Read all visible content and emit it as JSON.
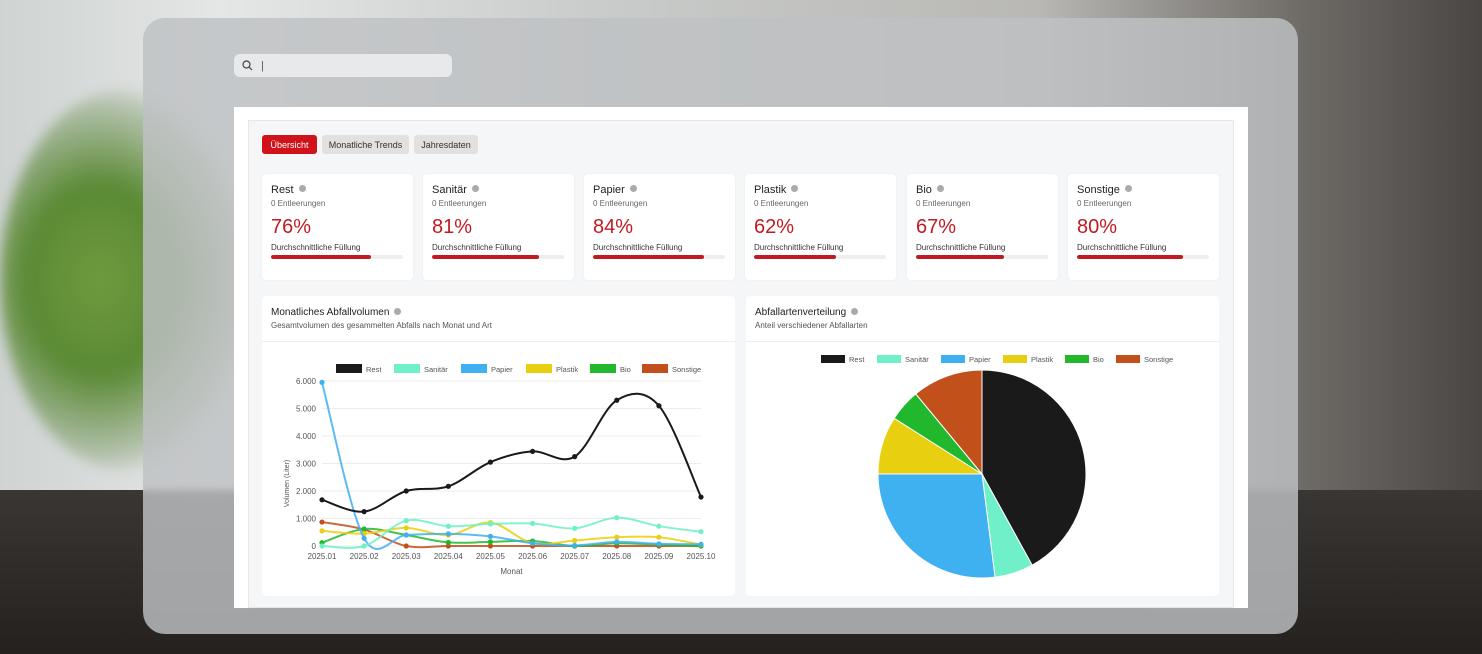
{
  "search": {
    "value": "|"
  },
  "tabs": [
    {
      "label": "Übersicht"
    },
    {
      "label": "Monatliche Trends"
    },
    {
      "label": "Jahresdaten"
    }
  ],
  "cards": [
    {
      "title": "Rest",
      "sub": "0 Entleerungen",
      "percent": "76%",
      "fill": 76,
      "label": "Durchschnittliche Füllung"
    },
    {
      "title": "Sanitär",
      "sub": "0 Entleerungen",
      "percent": "81%",
      "fill": 81,
      "label": "Durchschnittliche Füllung"
    },
    {
      "title": "Papier",
      "sub": "0 Entleerungen",
      "percent": "84%",
      "fill": 84,
      "label": "Durchschnittliche Füllung"
    },
    {
      "title": "Plastik",
      "sub": "0 Entleerungen",
      "percent": "62%",
      "fill": 62,
      "label": "Durchschnittliche Füllung"
    },
    {
      "title": "Bio",
      "sub": "0 Entleerungen",
      "percent": "67%",
      "fill": 67,
      "label": "Durchschnittliche Füllung"
    },
    {
      "title": "Sonstige",
      "sub": "0 Entleerungen",
      "percent": "80%",
      "fill": 80,
      "label": "Durchschnittliche Füllung"
    }
  ],
  "line_card": {
    "title": "Monatliches Abfallvolumen",
    "subtitle": "Gesamtvolumen des gesammelten Abfalls nach Monat und Art"
  },
  "pie_card": {
    "title": "Abfallartenverteilung",
    "subtitle": "Anteil verschiedener Abfallarten"
  },
  "chart_data": [
    {
      "type": "line",
      "xlabel": "Monat",
      "ylabel": "Volumen (Liter)",
      "ylim": [
        0,
        6000
      ],
      "yticks": [
        "0",
        "1.000",
        "2.000",
        "3.000",
        "4.000",
        "5.000",
        "6.000"
      ],
      "categories": [
        "2025.01",
        "2025.02",
        "2025.03",
        "2025.04",
        "2025.05",
        "2025.06",
        "2025.07",
        "2025.08",
        "2025.09",
        "2025.10"
      ],
      "legend": "top",
      "series": [
        {
          "name": "Rest",
          "color": "#1a1a1a",
          "values": [
            1680,
            1250,
            2000,
            2170,
            3050,
            3440,
            3250,
            5300,
            5100,
            1780
          ]
        },
        {
          "name": "Sanitär",
          "color": "#6ff0c8",
          "values": [
            0,
            0,
            920,
            720,
            800,
            820,
            640,
            1030,
            720,
            520
          ]
        },
        {
          "name": "Papier",
          "color": "#3fb0f0",
          "values": [
            5950,
            280,
            400,
            440,
            350,
            100,
            20,
            150,
            80,
            60
          ]
        },
        {
          "name": "Plastik",
          "color": "#e8cf10",
          "values": [
            550,
            450,
            660,
            400,
            850,
            100,
            200,
            320,
            320,
            50
          ]
        },
        {
          "name": "Bio",
          "color": "#22b82e",
          "values": [
            120,
            620,
            400,
            130,
            150,
            180,
            0,
            100,
            50,
            0
          ]
        },
        {
          "name": "Sonstige",
          "color": "#c1501a",
          "values": [
            870,
            600,
            0,
            0,
            0,
            0,
            0,
            0,
            0,
            0
          ]
        }
      ]
    },
    {
      "type": "pie",
      "legend": "top",
      "labels": [
        "Rest",
        "Sanitär",
        "Papier",
        "Plastik",
        "Bio",
        "Sonstige"
      ],
      "values": [
        42,
        6,
        27,
        9,
        5,
        11
      ],
      "colors": [
        "#1a1a1a",
        "#6ff0c8",
        "#3fb0f0",
        "#e8cf10",
        "#22b82e",
        "#c1501a"
      ]
    }
  ]
}
